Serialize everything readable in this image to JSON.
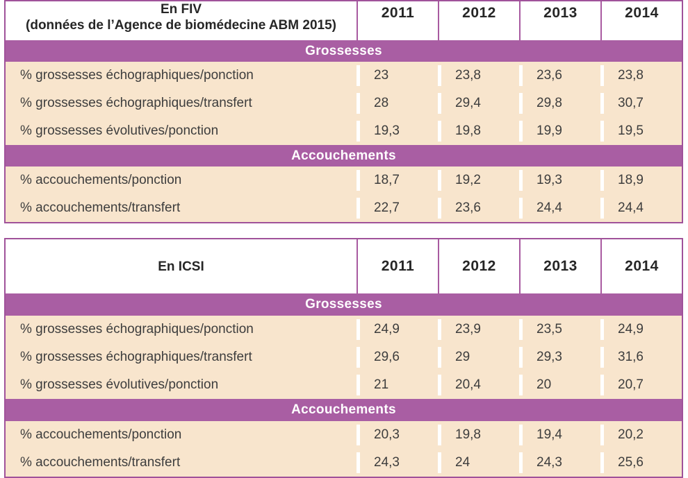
{
  "colors": {
    "band_purple": "#a95ea3",
    "border_purple": "#a0529a",
    "inner_pink_outline": "#eed3e9",
    "row_peach": "#f8e5cd",
    "text_dark": "#3d3d3d",
    "band_text": "#ffffff"
  },
  "tables": [
    {
      "id": "fiv",
      "title_lines": [
        "En FIV",
        "(données de l’Agence de biomédecine ABM 2015)"
      ],
      "years": [
        "2011",
        "2012",
        "2013",
        "2014"
      ],
      "sections": [
        {
          "header": "Grossesses",
          "rows": [
            {
              "label": "% grossesses échographiques/ponction",
              "values": [
                "23",
                "23,8",
                "23,6",
                "23,8"
              ]
            },
            {
              "label": "% grossesses échographiques/transfert",
              "values": [
                "28",
                "29,4",
                "29,8",
                "30,7"
              ]
            },
            {
              "label": "% grossesses évolutives/ponction",
              "values": [
                "19,3",
                "19,8",
                "19,9",
                "19,5"
              ]
            }
          ]
        },
        {
          "header": "Accouchements",
          "rows": [
            {
              "label": "% accouchements/ponction",
              "values": [
                "18,7",
                "19,2",
                "19,3",
                "18,9"
              ]
            },
            {
              "label": "% accouchements/transfert",
              "values": [
                "22,7",
                "23,6",
                "24,4",
                "24,4"
              ]
            }
          ]
        }
      ]
    },
    {
      "id": "icsi",
      "title_lines": [
        "En ICSI"
      ],
      "years": [
        "2011",
        "2012",
        "2013",
        "2014"
      ],
      "sections": [
        {
          "header": "Grossesses",
          "rows": [
            {
              "label": "% grossesses échographiques/ponction",
              "values": [
                "24,9",
                "23,9",
                "23,5",
                "24,9"
              ]
            },
            {
              "label": "% grossesses échographiques/transfert",
              "values": [
                "29,6",
                "29",
                "29,3",
                "31,6"
              ]
            },
            {
              "label": "% grossesses évolutives/ponction",
              "values": [
                "21",
                "20,4",
                "20",
                "20,7"
              ]
            }
          ]
        },
        {
          "header": "Accouchements",
          "rows": [
            {
              "label": "% accouchements/ponction",
              "values": [
                "20,3",
                "19,8",
                "19,4",
                "20,2"
              ]
            },
            {
              "label": "% accouchements/transfert",
              "values": [
                "24,3",
                "24",
                "24,3",
                "25,6"
              ]
            }
          ]
        }
      ]
    }
  ]
}
